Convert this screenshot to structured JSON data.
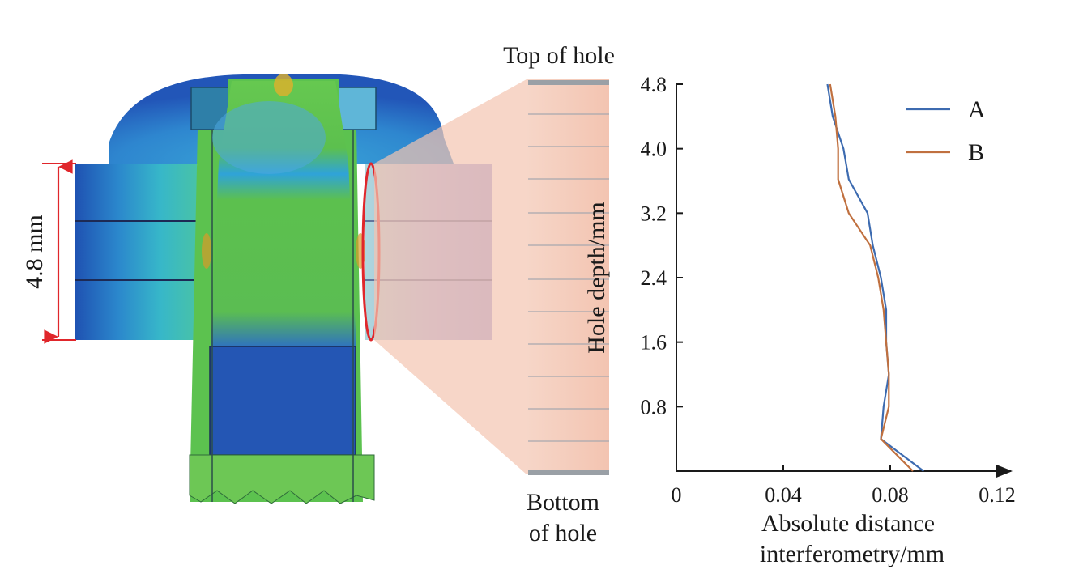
{
  "figure": {
    "dimension_label": "4.8 mm",
    "top_label": "Top of hole",
    "bottom_label_line1": "Bottom",
    "bottom_label_line2": "of hole"
  },
  "colors": {
    "series_a": "#3d6bb0",
    "series_b": "#c0703f",
    "dimension_arrow": "#e0262b",
    "highlight_ellipse": "#e0262b",
    "magnifier_fill": "#f3c9b8",
    "axis": "#1a1a1a"
  },
  "chart_data": {
    "type": "line",
    "xlabel_line1": "Absolute distance",
    "xlabel_line2": "interferometry/mm",
    "ylabel": "Hole depth/mm",
    "xlim": [
      0,
      0.125
    ],
    "ylim": [
      0,
      4.8
    ],
    "xticks": [
      "0",
      "0.04",
      "0.08",
      "0.12"
    ],
    "xtick_values": [
      0,
      0.04,
      0.08,
      0.12
    ],
    "yticks": [
      "0.8",
      "1.6",
      "2.4",
      "3.2",
      "4.0",
      "4.8"
    ],
    "ytick_values": [
      0.8,
      1.6,
      2.4,
      3.2,
      4.0,
      4.8
    ],
    "legend_position": "top-right",
    "grid": false,
    "series": [
      {
        "name": "A",
        "points": [
          [
            0.0565,
            4.8
          ],
          [
            0.0585,
            4.4
          ],
          [
            0.0625,
            4.0
          ],
          [
            0.0645,
            3.62
          ],
          [
            0.0715,
            3.2
          ],
          [
            0.0735,
            2.8
          ],
          [
            0.0765,
            2.4
          ],
          [
            0.0785,
            2.0
          ],
          [
            0.0785,
            1.6
          ],
          [
            0.0795,
            1.2
          ],
          [
            0.0775,
            0.8
          ],
          [
            0.0765,
            0.4
          ],
          [
            0.0925,
            0.0
          ]
        ]
      },
      {
        "name": "B",
        "points": [
          [
            0.0575,
            4.8
          ],
          [
            0.0595,
            4.4
          ],
          [
            0.0605,
            4.0
          ],
          [
            0.0605,
            3.62
          ],
          [
            0.0645,
            3.2
          ],
          [
            0.0725,
            2.8
          ],
          [
            0.0755,
            2.4
          ],
          [
            0.0775,
            2.0
          ],
          [
            0.0785,
            1.6
          ],
          [
            0.0795,
            1.2
          ],
          [
            0.0795,
            0.8
          ],
          [
            0.0765,
            0.4
          ],
          [
            0.0885,
            0.0
          ]
        ]
      }
    ]
  }
}
